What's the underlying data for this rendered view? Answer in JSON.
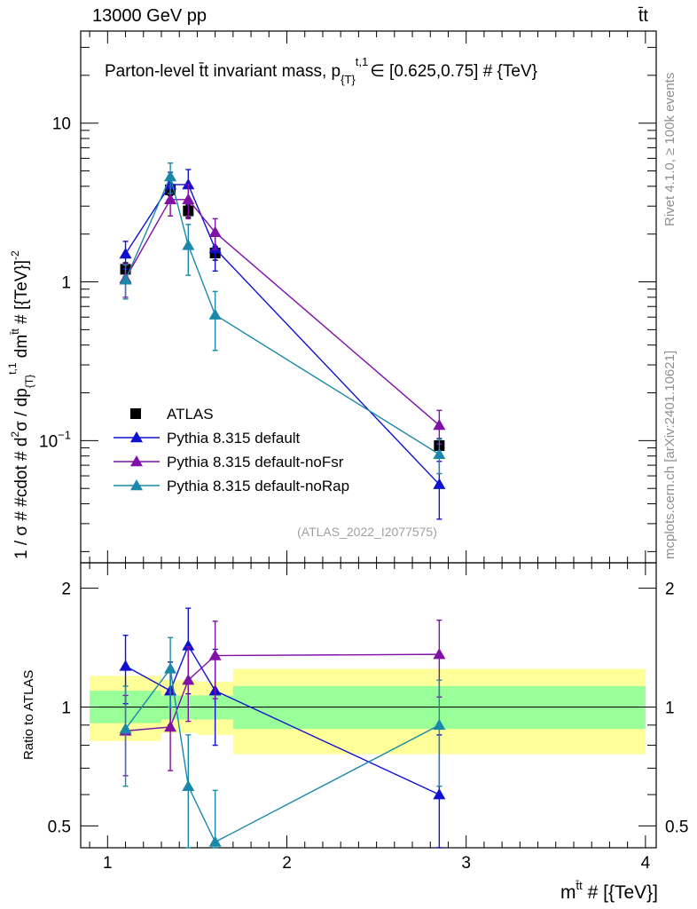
{
  "chart_data": [
    {
      "type": "line",
      "panel": "main",
      "title": "Parton-level t̄t invariant mass, p",
      "title_sub": "{T}",
      "title_sup": "t,1",
      "title_tail": "∈ [0.625,0.75] # {TeV}",
      "header_left": "13000 GeV pp",
      "header_right": "t̄t",
      "ylabel": "1 / σ # #cdot # d²σ / dp{T}^t,1 dm^t̄t # [{TeV}⁻²]",
      "ylabel_parts": {
        "a": "1 / σ # #cdot # d",
        "a_sup": "2",
        "b": "σ / dp",
        "b_sub": "{T}",
        "b_sup": "t,1",
        "c": " dm",
        "c_sup": "t̄t",
        "d": " # [{TeV}]",
        "d_sup": "-2"
      },
      "yscale": "log",
      "ylim": [
        0.017,
        38
      ],
      "xlim": [
        0.85,
        4.06
      ],
      "yticks": [
        {
          "value": 10,
          "label": "10"
        },
        {
          "value": 1,
          "label": "1"
        },
        {
          "value": 0.1,
          "label": "10",
          "sup": "−1"
        }
      ],
      "watermark": "(ATLAS_2022_I2077575)",
      "legend_position": "lower-left",
      "series": [
        {
          "name": "ATLAS",
          "marker": "square",
          "color": "#000000",
          "line": false,
          "x": [
            1.1,
            1.35,
            1.45,
            1.6,
            2.85
          ],
          "y": [
            1.2,
            3.8,
            2.8,
            1.52,
            0.093
          ],
          "err_lo": [
            0.12,
            0.3,
            0.25,
            0.15,
            0.01
          ],
          "err_hi": [
            0.12,
            0.3,
            0.25,
            0.15,
            0.01
          ]
        },
        {
          "name": "Pythia 8.315 default",
          "marker": "triangle",
          "color": "#1010d0",
          "line": true,
          "x": [
            1.1,
            1.35,
            1.45,
            1.6,
            2.85
          ],
          "y": [
            1.5,
            4.1,
            4.1,
            1.62,
            0.053
          ],
          "err_lo": [
            0.3,
            0.8,
            1.0,
            0.45,
            0.021
          ],
          "err_hi": [
            0.3,
            0.8,
            1.0,
            0.45,
            0.021
          ]
        },
        {
          "name": "Pythia 8.315 default-noFsr",
          "marker": "triangle",
          "color": "#8010a8",
          "line": true,
          "x": [
            1.1,
            1.35,
            1.45,
            1.6,
            2.85
          ],
          "y": [
            1.05,
            3.3,
            3.3,
            2.05,
            0.125
          ],
          "err_lo": [
            0.25,
            0.7,
            0.8,
            0.45,
            0.03
          ],
          "err_hi": [
            0.25,
            0.7,
            0.8,
            0.45,
            0.03
          ]
        },
        {
          "name": "Pythia 8.315 default-noRap",
          "marker": "triangle",
          "color": "#1a88a8",
          "line": true,
          "x": [
            1.1,
            1.35,
            1.45,
            1.6,
            2.85
          ],
          "y": [
            1.03,
            4.6,
            1.7,
            0.62,
            0.082
          ],
          "err_lo": [
            0.25,
            1.0,
            0.6,
            0.25,
            0.02
          ],
          "err_hi": [
            0.25,
            1.0,
            0.6,
            0.25,
            0.02
          ]
        }
      ]
    },
    {
      "type": "line",
      "panel": "ratio",
      "xlabel": "m",
      "xlabel_sup": "t̄t",
      "xlabel_tail": " # [{TeV}]",
      "ylabel": "Ratio to ATLAS",
      "yscale": "log",
      "ylim": [
        0.44,
        2.32
      ],
      "xlim": [
        0.85,
        4.06
      ],
      "xticks": [
        {
          "value": 1,
          "label": "1"
        },
        {
          "value": 2,
          "label": "2"
        },
        {
          "value": 3,
          "label": "3"
        },
        {
          "value": 4,
          "label": "4"
        }
      ],
      "yticks": [
        {
          "value": 2,
          "label": "2"
        },
        {
          "value": 1,
          "label": "1"
        },
        {
          "value": 0.5,
          "label": "0.5"
        }
      ],
      "bands": [
        {
          "x0": 0.9,
          "x1": 1.3,
          "stat_lo": 0.91,
          "stat_hi": 1.1,
          "tot_lo": 0.82,
          "tot_hi": 1.2
        },
        {
          "x0": 1.3,
          "x1": 1.5,
          "stat_lo": 0.93,
          "stat_hi": 1.07,
          "tot_lo": 0.86,
          "tot_hi": 1.17
        },
        {
          "x0": 1.5,
          "x1": 1.7,
          "stat_lo": 0.93,
          "stat_hi": 1.07,
          "tot_lo": 0.85,
          "tot_hi": 1.16
        },
        {
          "x0": 1.7,
          "x1": 4.0,
          "stat_lo": 0.88,
          "stat_hi": 1.13,
          "tot_lo": 0.76,
          "tot_hi": 1.25
        }
      ],
      "series": [
        {
          "name": "Pythia 8.315 default",
          "color": "#1010d0",
          "x": [
            1.1,
            1.35,
            1.45,
            1.6,
            2.85
          ],
          "y": [
            1.27,
            1.1,
            1.43,
            1.1,
            0.6
          ],
          "err_lo": [
            0.25,
            0.2,
            0.35,
            0.3,
            0.25
          ],
          "err_hi": [
            0.25,
            0.2,
            0.35,
            0.3,
            0.25
          ]
        },
        {
          "name": "Pythia 8.315 default-noFsr",
          "color": "#8010a8",
          "x": [
            1.1,
            1.35,
            1.45,
            1.6,
            2.85
          ],
          "y": [
            0.87,
            0.89,
            1.17,
            1.35,
            1.36
          ],
          "err_lo": [
            0.2,
            0.2,
            0.25,
            0.3,
            0.3
          ],
          "err_hi": [
            0.2,
            0.2,
            0.25,
            0.3,
            0.3
          ]
        },
        {
          "name": "Pythia 8.315 default-noRap",
          "color": "#1a88a8",
          "x": [
            1.1,
            1.35,
            1.45,
            1.6,
            2.85
          ],
          "y": [
            0.88,
            1.25,
            0.63,
            0.455,
            0.9
          ],
          "err_lo": [
            0.25,
            0.25,
            0.22,
            0.16,
            0.27
          ],
          "err_hi": [
            0.25,
            0.25,
            0.22,
            0.16,
            0.27
          ]
        }
      ]
    }
  ],
  "side_texts": {
    "rivet": "Rivet 4.1.0, ≥ 100k events",
    "mcplots": "mcplots.cern.ch [arXiv:2401.10621]"
  }
}
